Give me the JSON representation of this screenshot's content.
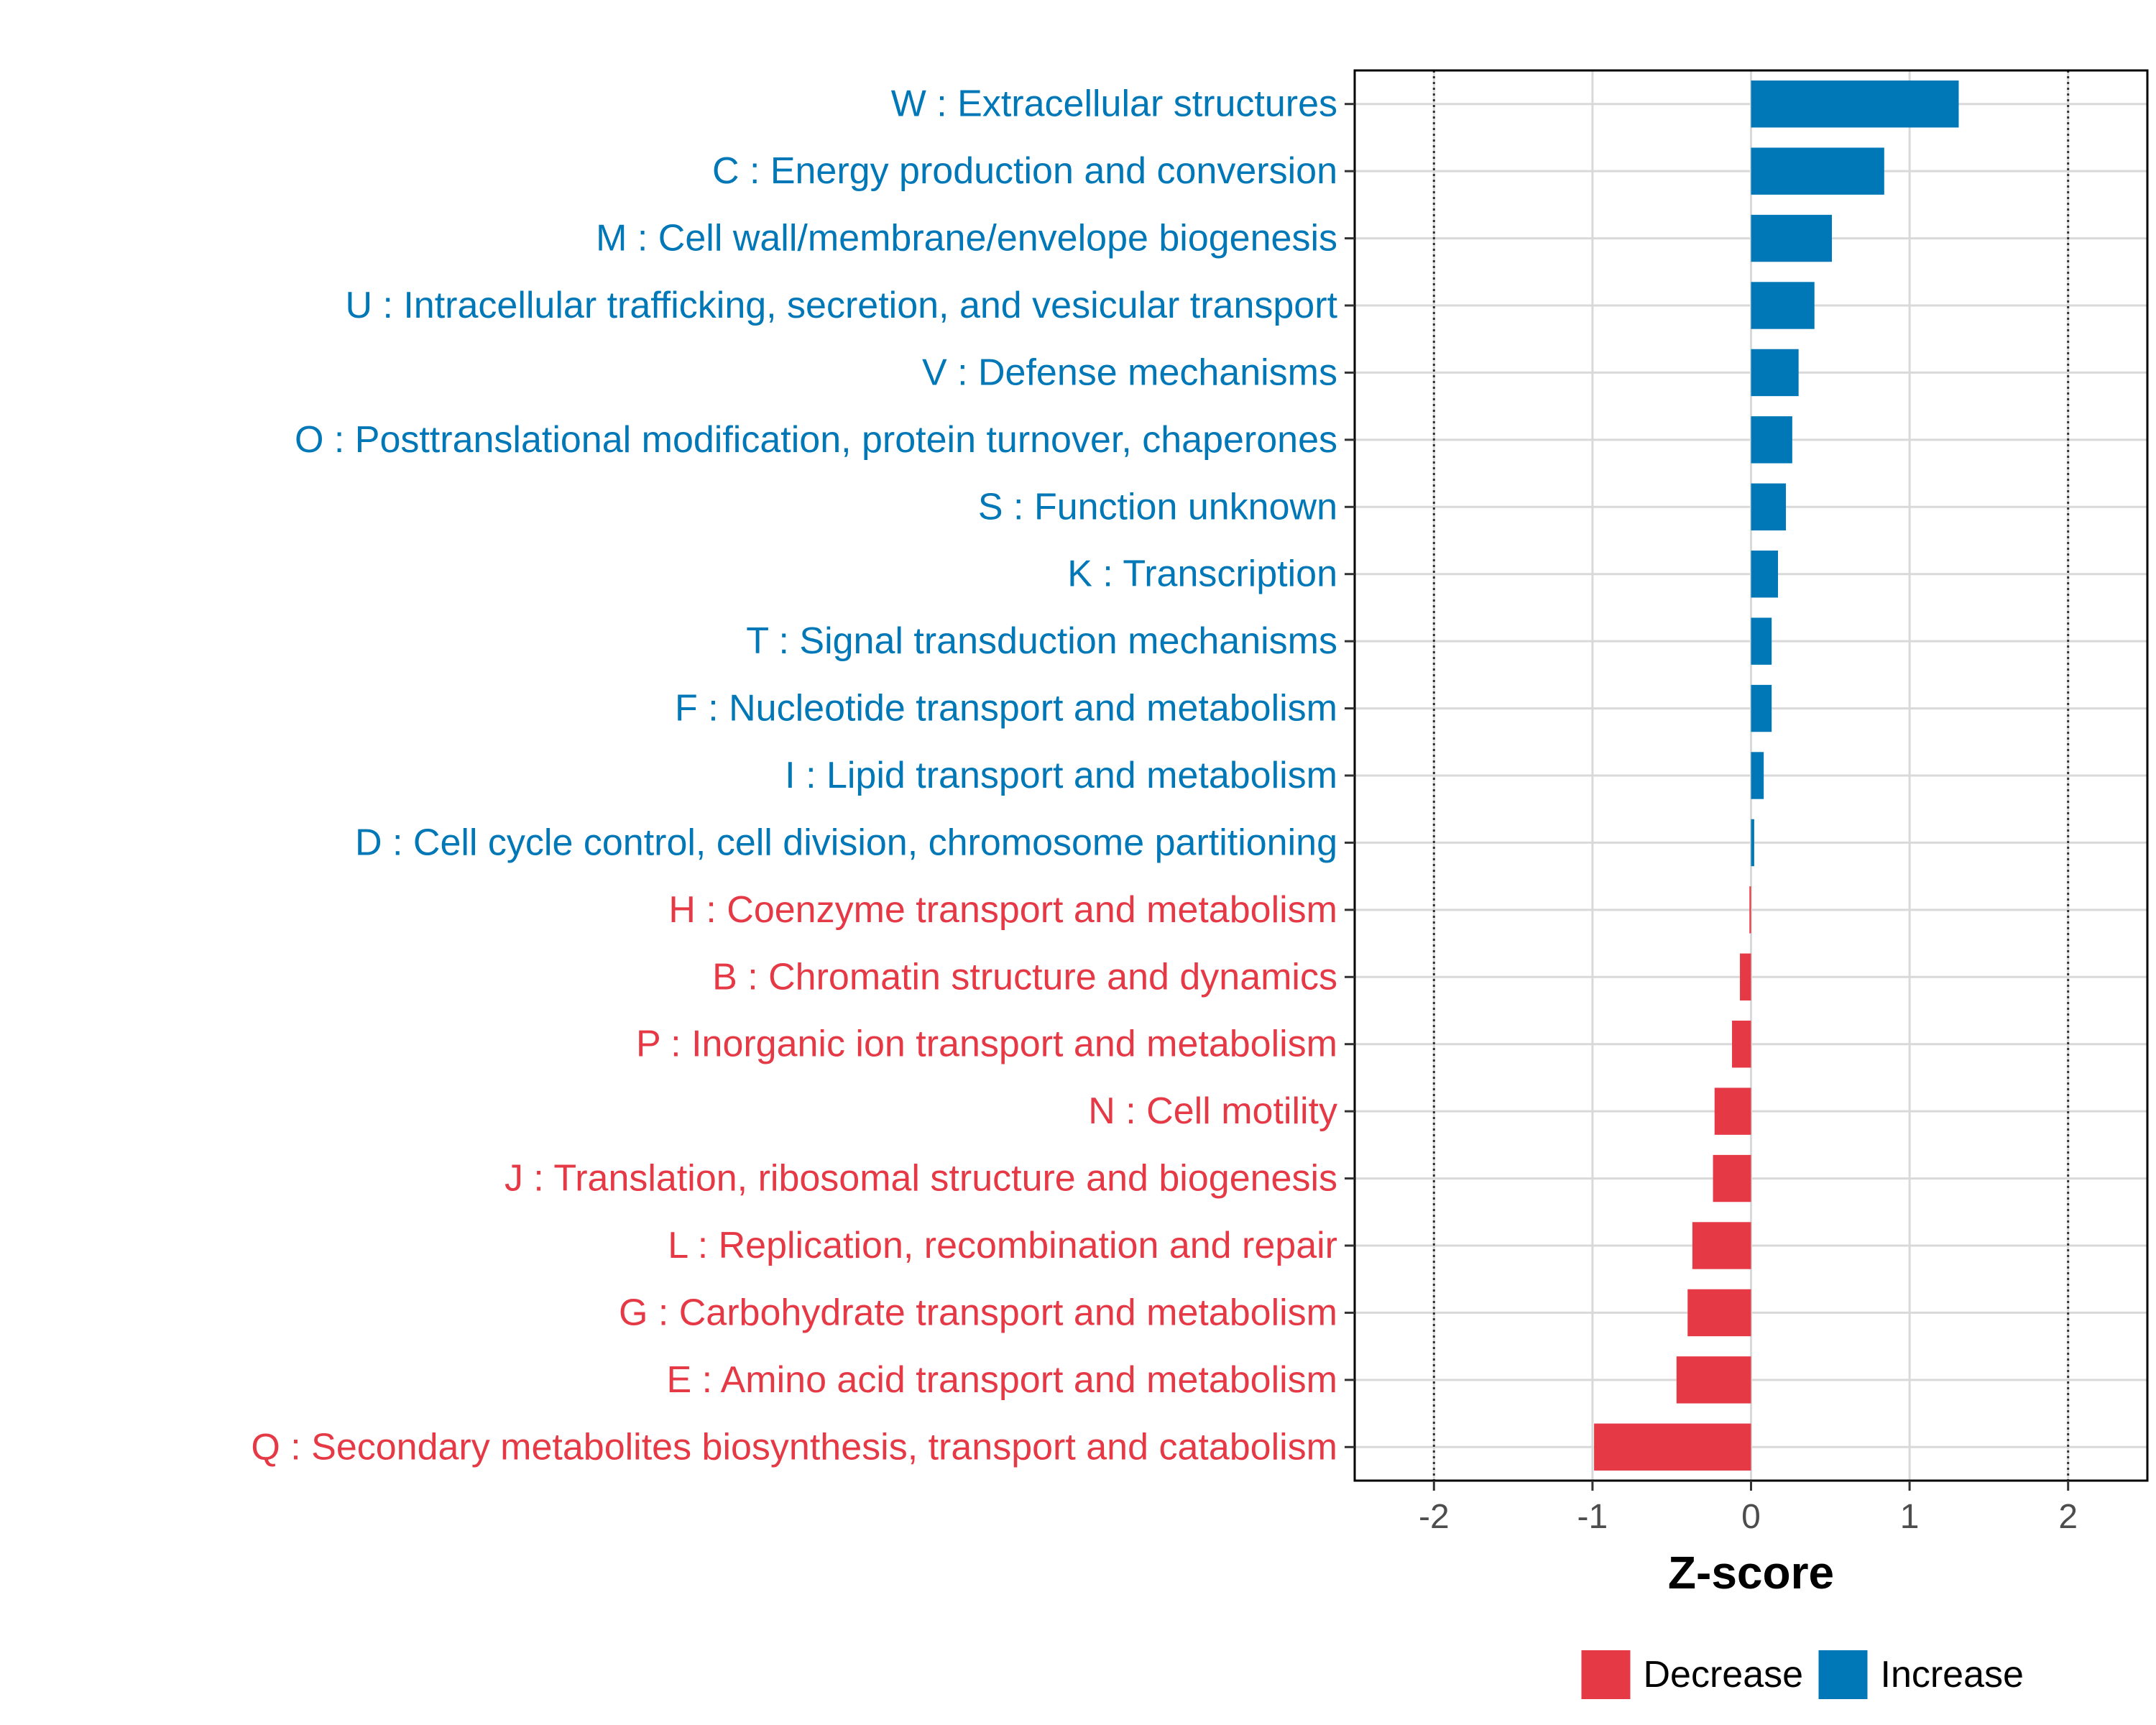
{
  "chart_data": {
    "type": "bar",
    "orientation": "horizontal",
    "xlabel": "Z-score",
    "xlim": [
      -2.5,
      2.5
    ],
    "xticks": [
      -2,
      -1,
      0,
      1,
      2
    ],
    "xtick_labels": [
      "-2",
      "-1",
      "0",
      "1",
      "2"
    ],
    "reference_lines": [
      -2,
      2
    ],
    "grid": true,
    "legend": {
      "position": "bottom",
      "entries": [
        {
          "label": "Decrease",
          "color": "#E63946"
        },
        {
          "label": "Increase",
          "color": "#0077B6"
        }
      ]
    },
    "categories": [
      {
        "label": "W : Extracellular structures",
        "value": 1.31,
        "group": "Increase"
      },
      {
        "label": "C : Energy production and conversion",
        "value": 0.84,
        "group": "Increase"
      },
      {
        "label": "M : Cell wall/membrane/envelope biogenesis",
        "value": 0.51,
        "group": "Increase"
      },
      {
        "label": "U : Intracellular trafficking, secretion, and vesicular transport",
        "value": 0.4,
        "group": "Increase"
      },
      {
        "label": "V : Defense mechanisms",
        "value": 0.3,
        "group": "Increase"
      },
      {
        "label": "O : Posttranslational modification, protein turnover, chaperones",
        "value": 0.26,
        "group": "Increase"
      },
      {
        "label": "S : Function unknown",
        "value": 0.22,
        "group": "Increase"
      },
      {
        "label": "K : Transcription",
        "value": 0.17,
        "group": "Increase"
      },
      {
        "label": "T : Signal transduction mechanisms",
        "value": 0.13,
        "group": "Increase"
      },
      {
        "label": "F : Nucleotide transport and metabolism",
        "value": 0.13,
        "group": "Increase"
      },
      {
        "label": "I : Lipid transport and metabolism",
        "value": 0.08,
        "group": "Increase"
      },
      {
        "label": "D : Cell cycle control, cell division, chromosome partitioning",
        "value": 0.02,
        "group": "Increase"
      },
      {
        "label": "H : Coenzyme transport and metabolism",
        "value": -0.01,
        "group": "Decrease"
      },
      {
        "label": "B : Chromatin structure and dynamics",
        "value": -0.07,
        "group": "Decrease"
      },
      {
        "label": "P : Inorganic ion transport and metabolism",
        "value": -0.12,
        "group": "Decrease"
      },
      {
        "label": "N : Cell motility",
        "value": -0.23,
        "group": "Decrease"
      },
      {
        "label": "J : Translation, ribosomal structure and biogenesis",
        "value": -0.24,
        "group": "Decrease"
      },
      {
        "label": "L : Replication, recombination and repair",
        "value": -0.37,
        "group": "Decrease"
      },
      {
        "label": "G : Carbohydrate transport and metabolism",
        "value": -0.4,
        "group": "Decrease"
      },
      {
        "label": "E : Amino acid transport and metabolism",
        "value": -0.47,
        "group": "Decrease"
      },
      {
        "label": "Q : Secondary metabolites biosynthesis, transport and catabolism",
        "value": -0.99,
        "group": "Decrease"
      }
    ]
  }
}
